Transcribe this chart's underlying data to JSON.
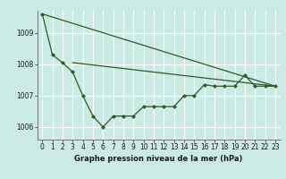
{
  "xlabel": "Graphe pression niveau de la mer (hPa)",
  "background_color": "#cceae4",
  "grid_color": "#ffffff",
  "line_color": "#2d5a27",
  "xlim": [
    -0.5,
    23.5
  ],
  "ylim": [
    1005.6,
    1009.7
  ],
  "yticks": [
    1006,
    1007,
    1008,
    1009
  ],
  "xticks": [
    0,
    1,
    2,
    3,
    4,
    5,
    6,
    7,
    8,
    9,
    10,
    11,
    12,
    13,
    14,
    15,
    16,
    17,
    18,
    19,
    20,
    21,
    22,
    23
  ],
  "hours": [
    0,
    1,
    2,
    3,
    4,
    5,
    6,
    7,
    8,
    9,
    10,
    11,
    12,
    13,
    14,
    15,
    16,
    17,
    18,
    19,
    20,
    21,
    22,
    23
  ],
  "line_zigzag": [
    1009.6,
    1008.3,
    1008.05,
    1007.75,
    1007.0,
    1006.35,
    1006.0,
    1006.35,
    1006.35,
    1006.35,
    1006.65,
    1006.65,
    1006.65,
    1006.65,
    1007.0,
    1007.0,
    1007.35,
    1007.3,
    1007.3,
    1007.3,
    1007.65,
    1007.3,
    1007.3,
    1007.3
  ],
  "trend1_x": [
    0,
    23
  ],
  "trend1_y": [
    1009.6,
    1007.3
  ],
  "trend2_x": [
    3,
    23
  ],
  "trend2_y": [
    1008.05,
    1007.3
  ],
  "xlabel_fontsize": 6.0,
  "tick_fontsize": 5.5
}
